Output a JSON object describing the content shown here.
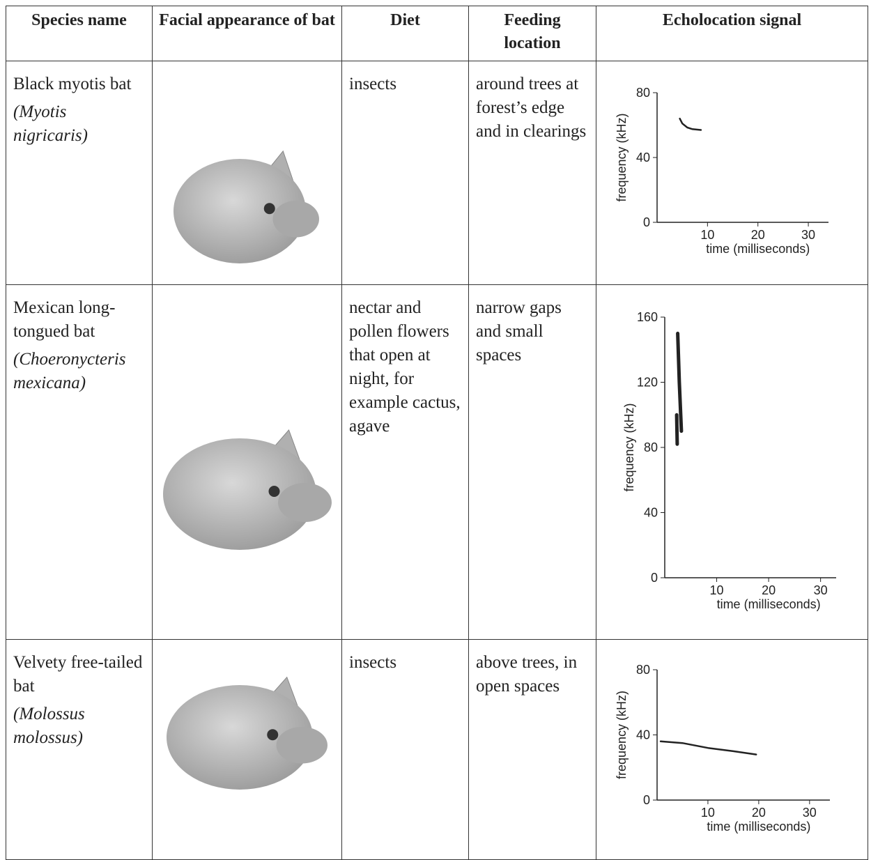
{
  "table": {
    "headers": [
      "Species name",
      "Facial appearance of bat",
      "Diet",
      "Feeding location",
      "Echolocation signal"
    ],
    "rows": [
      {
        "common_name": "Black myotis bat",
        "scientific_name": "(Myotis nigricaris)",
        "diet": "insects",
        "feeding_location": "around trees at forest’s edge and in clearings",
        "signal": {
          "ylabel": "frequency (kHz)",
          "xlabel": "time (milliseconds)",
          "xlim": [
            0,
            34
          ],
          "ylim": [
            0,
            80
          ],
          "xticks": [
            10,
            20,
            30
          ],
          "yticks": [
            0,
            40,
            80
          ],
          "x": [
            4.5,
            5,
            6,
            7,
            8.7
          ],
          "y": [
            64,
            61,
            58.5,
            57.5,
            57
          ]
        }
      },
      {
        "common_name": "Mexican long-tongued bat",
        "scientific_name": "(Choeronycteris mexicana)",
        "diet": "nectar and pollen flowers that open at night, for example cactus, agave",
        "feeding_location": "narrow gaps and small spaces",
        "signal": {
          "ylabel": "frequency (kHz)",
          "xlabel": "time (milliseconds)",
          "xlim": [
            0,
            33
          ],
          "ylim": [
            0,
            160
          ],
          "xticks": [
            10,
            20,
            30
          ],
          "yticks": [
            0,
            40,
            80,
            120,
            160
          ],
          "x": [
            2.5,
            2.8,
            3.2,
            null,
            2.3,
            2.4
          ],
          "y": [
            150,
            120,
            90,
            null,
            100,
            82
          ]
        }
      },
      {
        "common_name": "Velvety free-tailed bat",
        "scientific_name": "(Molossus molossus)",
        "diet": "insects",
        "feeding_location": "above trees, in open spaces",
        "signal": {
          "ylabel": "frequency (kHz)",
          "xlabel": "time (milliseconds)",
          "xlim": [
            0,
            34
          ],
          "ylim": [
            0,
            80
          ],
          "xticks": [
            10,
            20,
            30
          ],
          "yticks": [
            0,
            40,
            80
          ],
          "x": [
            0.7,
            5,
            10,
            15,
            19.5
          ],
          "y": [
            36,
            35,
            32,
            30,
            28
          ]
        }
      }
    ]
  }
}
